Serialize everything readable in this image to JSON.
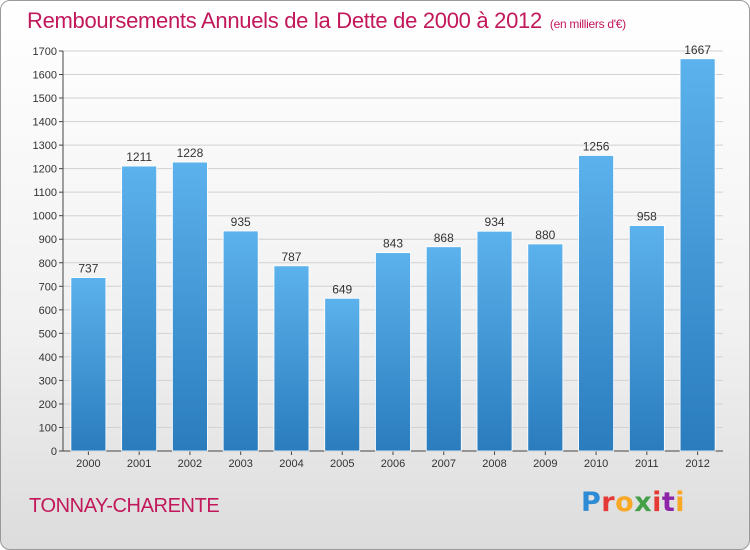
{
  "title": "Remboursements Annuels de la Dette de 2000 à 2012",
  "unit_note": "(en milliers d'€)",
  "commune": "TONNAY-CHARENTE",
  "logo": {
    "text": "Proxiti",
    "colors": [
      "#2e8bd6",
      "#e53935",
      "#f9a825",
      "#43a047",
      "#e53935",
      "#8e24aa",
      "#f9a825"
    ]
  },
  "colors": {
    "title": "#c2185b",
    "bar_top": "#5cb2ec",
    "bar_bottom": "#2a7cbd"
  },
  "chart_data": {
    "type": "bar",
    "title": "Remboursements Annuels de la Dette de 2000 à 2012",
    "categories": [
      "2000",
      "2001",
      "2002",
      "2003",
      "2004",
      "2005",
      "2006",
      "2007",
      "2008",
      "2009",
      "2010",
      "2011",
      "2012"
    ],
    "values": [
      737,
      1211,
      1228,
      935,
      787,
      649,
      843,
      868,
      934,
      880,
      1256,
      958,
      1667
    ],
    "ylim": [
      0,
      1700
    ],
    "yticks": [
      0,
      100,
      200,
      300,
      400,
      500,
      600,
      700,
      800,
      900,
      1000,
      1100,
      1200,
      1300,
      1400,
      1500,
      1600,
      1700
    ],
    "grid": true,
    "data_labels": true,
    "legend": "none"
  }
}
